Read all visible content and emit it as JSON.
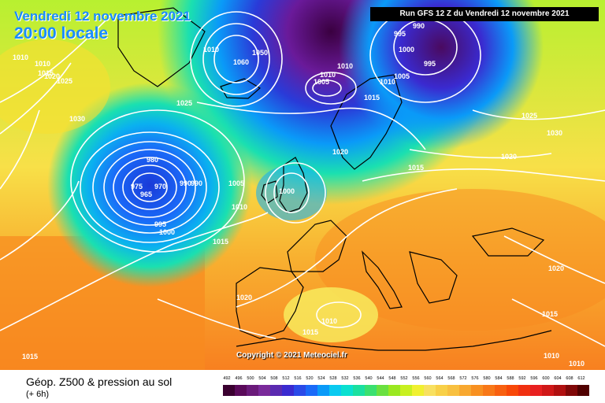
{
  "header": {
    "date": "Vendredi 12 novembre 2021",
    "time": "20:00 locale",
    "run": "Run GFS 12 Z du Vendredi 12 novembre 2021"
  },
  "copyright": "Copyright © 2021 Meteociel.fr",
  "legend": {
    "title": "Géop. Z500 & pression au sol",
    "subtitle": "(+ 6h)",
    "ticks": [
      "492",
      "496",
      "500",
      "504",
      "508",
      "512",
      "516",
      "520",
      "524",
      "528",
      "532",
      "536",
      "540",
      "544",
      "548",
      "552",
      "556",
      "560",
      "564",
      "568",
      "572",
      "576",
      "580",
      "584",
      "588",
      "592",
      "596",
      "600",
      "604",
      "608",
      "612"
    ],
    "colors": [
      "#3a0030",
      "#5a0a5a",
      "#6a1a7a",
      "#7a2a9a",
      "#5a2ab0",
      "#3a2ad0",
      "#2a4ae8",
      "#1a6af8",
      "#0a9af8",
      "#0acaf0",
      "#0ae0d0",
      "#1ae0a0",
      "#3ae070",
      "#6ae040",
      "#9ae820",
      "#c8f020",
      "#f0f030",
      "#f8e060",
      "#f8d048",
      "#f8c040",
      "#f8a830",
      "#f89020",
      "#f87818",
      "#f86010",
      "#f84808",
      "#f03010",
      "#e82020",
      "#d01818",
      "#b01010",
      "#800808",
      "#500000"
    ]
  },
  "isobar_labels": [
    {
      "text": "1010"
    },
    {
      "text": "1010"
    },
    {
      "text": "1015"
    },
    {
      "text": "1025"
    },
    {
      "text": "1020"
    },
    {
      "text": "1030"
    },
    {
      "text": "1010"
    },
    {
      "text": "1050"
    },
    {
      "text": "1060"
    },
    {
      "text": "1025"
    },
    {
      "text": "995"
    },
    {
      "text": "990"
    },
    {
      "text": "1000"
    },
    {
      "text": "995"
    },
    {
      "text": "1010"
    },
    {
      "text": "1010"
    },
    {
      "text": "1005"
    },
    {
      "text": "1010"
    },
    {
      "text": "1005"
    },
    {
      "text": "1015"
    },
    {
      "text": "1025"
    },
    {
      "text": "1030"
    },
    {
      "text": "1020"
    },
    {
      "text": "1020"
    },
    {
      "text": "1015"
    },
    {
      "text": "980"
    },
    {
      "text": "975"
    },
    {
      "text": "970"
    },
    {
      "text": "965"
    },
    {
      "text": "990"
    },
    {
      "text": "990"
    },
    {
      "text": "995"
    },
    {
      "text": "1000"
    },
    {
      "text": "1005"
    },
    {
      "text": "1010"
    },
    {
      "text": "1000"
    },
    {
      "text": "1015"
    },
    {
      "text": "1020"
    },
    {
      "text": "1010"
    },
    {
      "text": "1015"
    },
    {
      "text": "1015"
    },
    {
      "text": "1020"
    },
    {
      "text": "1015"
    },
    {
      "text": "1010"
    },
    {
      "text": "1010"
    }
  ]
}
